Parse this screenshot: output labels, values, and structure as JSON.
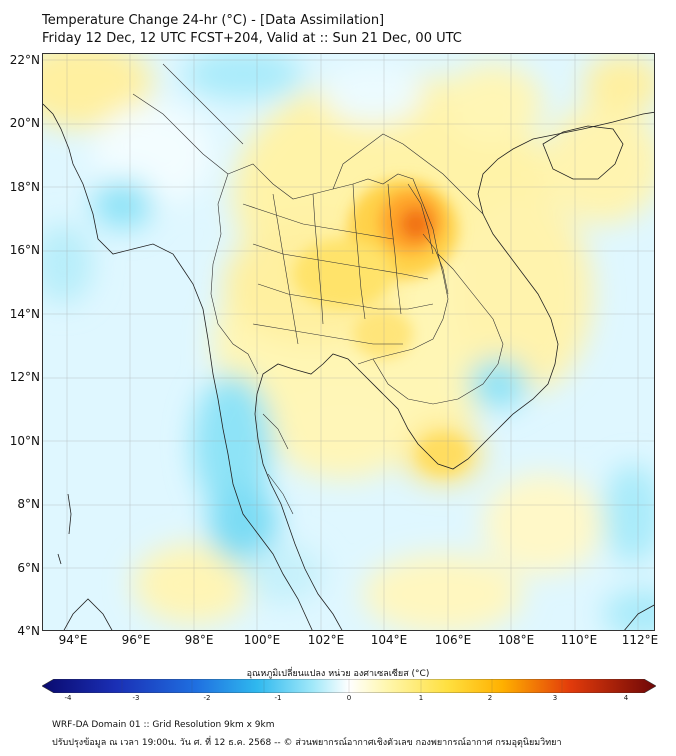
{
  "header": {
    "line1": "Temperature Change 24-hr (°C) - [Data Assimilation]",
    "line2": "Friday 12 Dec, 12 UTC FCST+204, Valid at :: Sun 21 Dec, 00 UTC"
  },
  "map": {
    "lat_labels": [
      "22°N",
      "20°N",
      "18°N",
      "16°N",
      "14°N",
      "12°N",
      "10°N",
      "8°N",
      "6°N",
      "4°N"
    ],
    "lon_labels": [
      "94°E",
      "96°E",
      "98°E",
      "100°E",
      "102°E",
      "104°E",
      "106°E",
      "108°E",
      "110°E",
      "112°E"
    ],
    "lat_range": [
      4,
      22.2
    ],
    "lon_range": [
      93.2,
      112.5
    ]
  },
  "legend": {
    "title": "อุณหภูมิเปลี่ยนแปลง หน่วย องศาเซลเซียส (°C)",
    "tick_labels": [
      "-4",
      "-3",
      "-2",
      "-1",
      "0",
      "1",
      "2",
      "3",
      "4"
    ],
    "range": [
      -4,
      4
    ],
    "colors": [
      "#0a0a6e",
      "#1f3fd6",
      "#2fb8ee",
      "#c8f2fb",
      "#ffffff",
      "#fff7b0",
      "#ffc400",
      "#e23b0b",
      "#6e0707"
    ]
  },
  "footer": {
    "line1": "WRF-DA Domain 01 :: Grid Resolution 9km x 9km",
    "line2": "ปรับปรุงข้อมูล ณ เวลา 19:00น. วัน ศ. ที่ 12 ธ.ค. 2568 -- © ส่วนพยากรณ์อากาศเชิงตัวเลข กองพยากรณ์อากาศ กรมอุตุนิยมวิทยา"
  }
}
